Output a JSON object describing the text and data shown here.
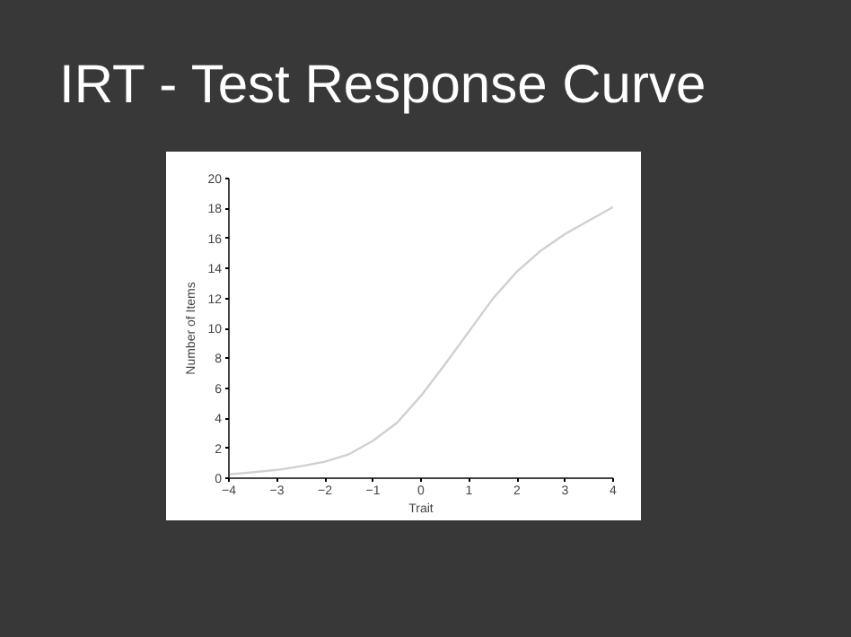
{
  "chart_data": {
    "type": "line",
    "title": "IRT - Test Response Curve",
    "xlabel": "Trait",
    "ylabel": "Number of Items",
    "x": [
      -4,
      -3.5,
      -3,
      -2.5,
      -2,
      -1.5,
      -1,
      -0.5,
      0,
      0.5,
      1,
      1.5,
      2,
      2.5,
      3,
      3.5,
      4
    ],
    "series": [
      {
        "color": "#d0d0d0",
        "values": [
          0.25,
          0.4,
          0.55,
          0.8,
          1.1,
          1.6,
          2.5,
          3.7,
          5.5,
          7.6,
          9.8,
          12,
          13.8,
          15.2,
          16.3,
          17.2,
          18.1
        ]
      }
    ],
    "xlim": [
      -4,
      4
    ],
    "ylim": [
      0,
      20
    ],
    "xticks": [
      -4,
      -3,
      -2,
      -1,
      0,
      1,
      2,
      3,
      4
    ],
    "yticks": [
      0,
      2,
      4,
      6,
      8,
      10,
      12,
      14,
      16,
      18,
      20
    ]
  }
}
